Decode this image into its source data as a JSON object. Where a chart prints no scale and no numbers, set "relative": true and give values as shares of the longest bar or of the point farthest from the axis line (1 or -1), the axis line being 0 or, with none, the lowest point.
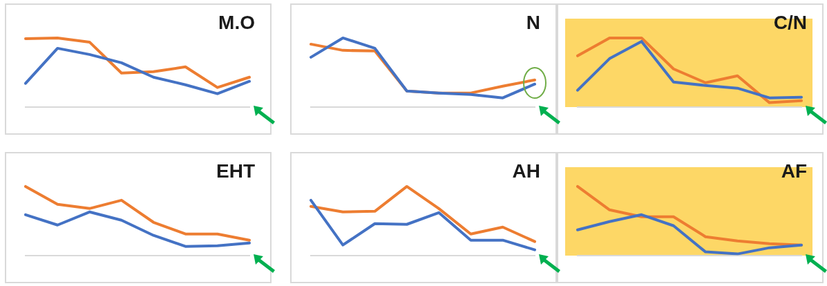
{
  "chart_data": [
    {
      "type": "line",
      "title": "M.O",
      "relative": true,
      "legend": false,
      "grid": false,
      "marker": "none",
      "categories": [
        null,
        null,
        null,
        null,
        null,
        null,
        null,
        null
      ],
      "series": [
        {
          "color": "#4472c4",
          "values": [
            0.34,
            0.85,
            0.76,
            0.64,
            0.43,
            0.32,
            0.19,
            0.37
          ]
        },
        {
          "color": "#ed7d31",
          "values": [
            0.99,
            1,
            0.94,
            0.49,
            0.51,
            0.58,
            0.28,
            0.43
          ]
        }
      ]
    },
    {
      "type": "line",
      "title": "N",
      "relative": true,
      "legend": false,
      "grid": false,
      "marker": "none",
      "categories": [
        null,
        null,
        null,
        null,
        null,
        null,
        null,
        null
      ],
      "series": [
        {
          "color": "#4472c4",
          "values": [
            0.72,
            1,
            0.85,
            0.23,
            0.2,
            0.18,
            0.13,
            0.33
          ]
        },
        {
          "color": "#ed7d31",
          "values": [
            0.91,
            0.82,
            0.81,
            0.23,
            0.2,
            0.2,
            0.3,
            0.39
          ]
        }
      ]
    },
    {
      "type": "line",
      "title": "C/N",
      "relative": true,
      "legend": false,
      "grid": false,
      "marker": "none",
      "categories": [
        null,
        null,
        null,
        null,
        null,
        null,
        null,
        null
      ],
      "series": [
        {
          "color": "#4472c4",
          "values": [
            0.24,
            0.7,
            0.95,
            0.36,
            0.31,
            0.27,
            0.13,
            0.14
          ]
        },
        {
          "color": "#ed7d31",
          "values": [
            0.74,
            1,
            1,
            0.55,
            0.35,
            0.45,
            0.06,
            0.09
          ]
        }
      ]
    },
    {
      "type": "line",
      "title": "EHT",
      "relative": true,
      "legend": false,
      "grid": false,
      "marker": "none",
      "categories": [
        null,
        null,
        null,
        null,
        null,
        null,
        null,
        null
      ],
      "series": [
        {
          "color": "#4472c4",
          "values": [
            0.59,
            0.44,
            0.63,
            0.51,
            0.29,
            0.13,
            0.14,
            0.18
          ]
        },
        {
          "color": "#ed7d31",
          "values": [
            1,
            0.74,
            0.68,
            0.8,
            0.48,
            0.31,
            0.31,
            0.22
          ]
        }
      ]
    },
    {
      "type": "line",
      "title": "AH",
      "relative": true,
      "legend": false,
      "grid": false,
      "marker": "none",
      "categories": [
        null,
        null,
        null,
        null,
        null,
        null,
        null,
        null
      ],
      "series": [
        {
          "color": "#4472c4",
          "values": [
            0.8,
            0.15,
            0.46,
            0.45,
            0.62,
            0.22,
            0.22,
            0.08
          ]
        },
        {
          "color": "#ed7d31",
          "values": [
            0.71,
            0.63,
            0.64,
            1,
            0.68,
            0.31,
            0.41,
            0.2
          ]
        }
      ]
    },
    {
      "type": "line",
      "title": "AF",
      "relative": true,
      "legend": false,
      "grid": false,
      "marker": "none",
      "categories": [
        null,
        null,
        null,
        null,
        null,
        null,
        null,
        null
      ],
      "series": [
        {
          "color": "#4472c4",
          "values": [
            0.37,
            0.49,
            0.59,
            0.43,
            0.05,
            0.02,
            0.11,
            0.15
          ]
        },
        {
          "color": "#ed7d31",
          "values": [
            1,
            0.66,
            0.56,
            0.56,
            0.27,
            0.21,
            0.17,
            0.15
          ]
        }
      ]
    }
  ]
}
